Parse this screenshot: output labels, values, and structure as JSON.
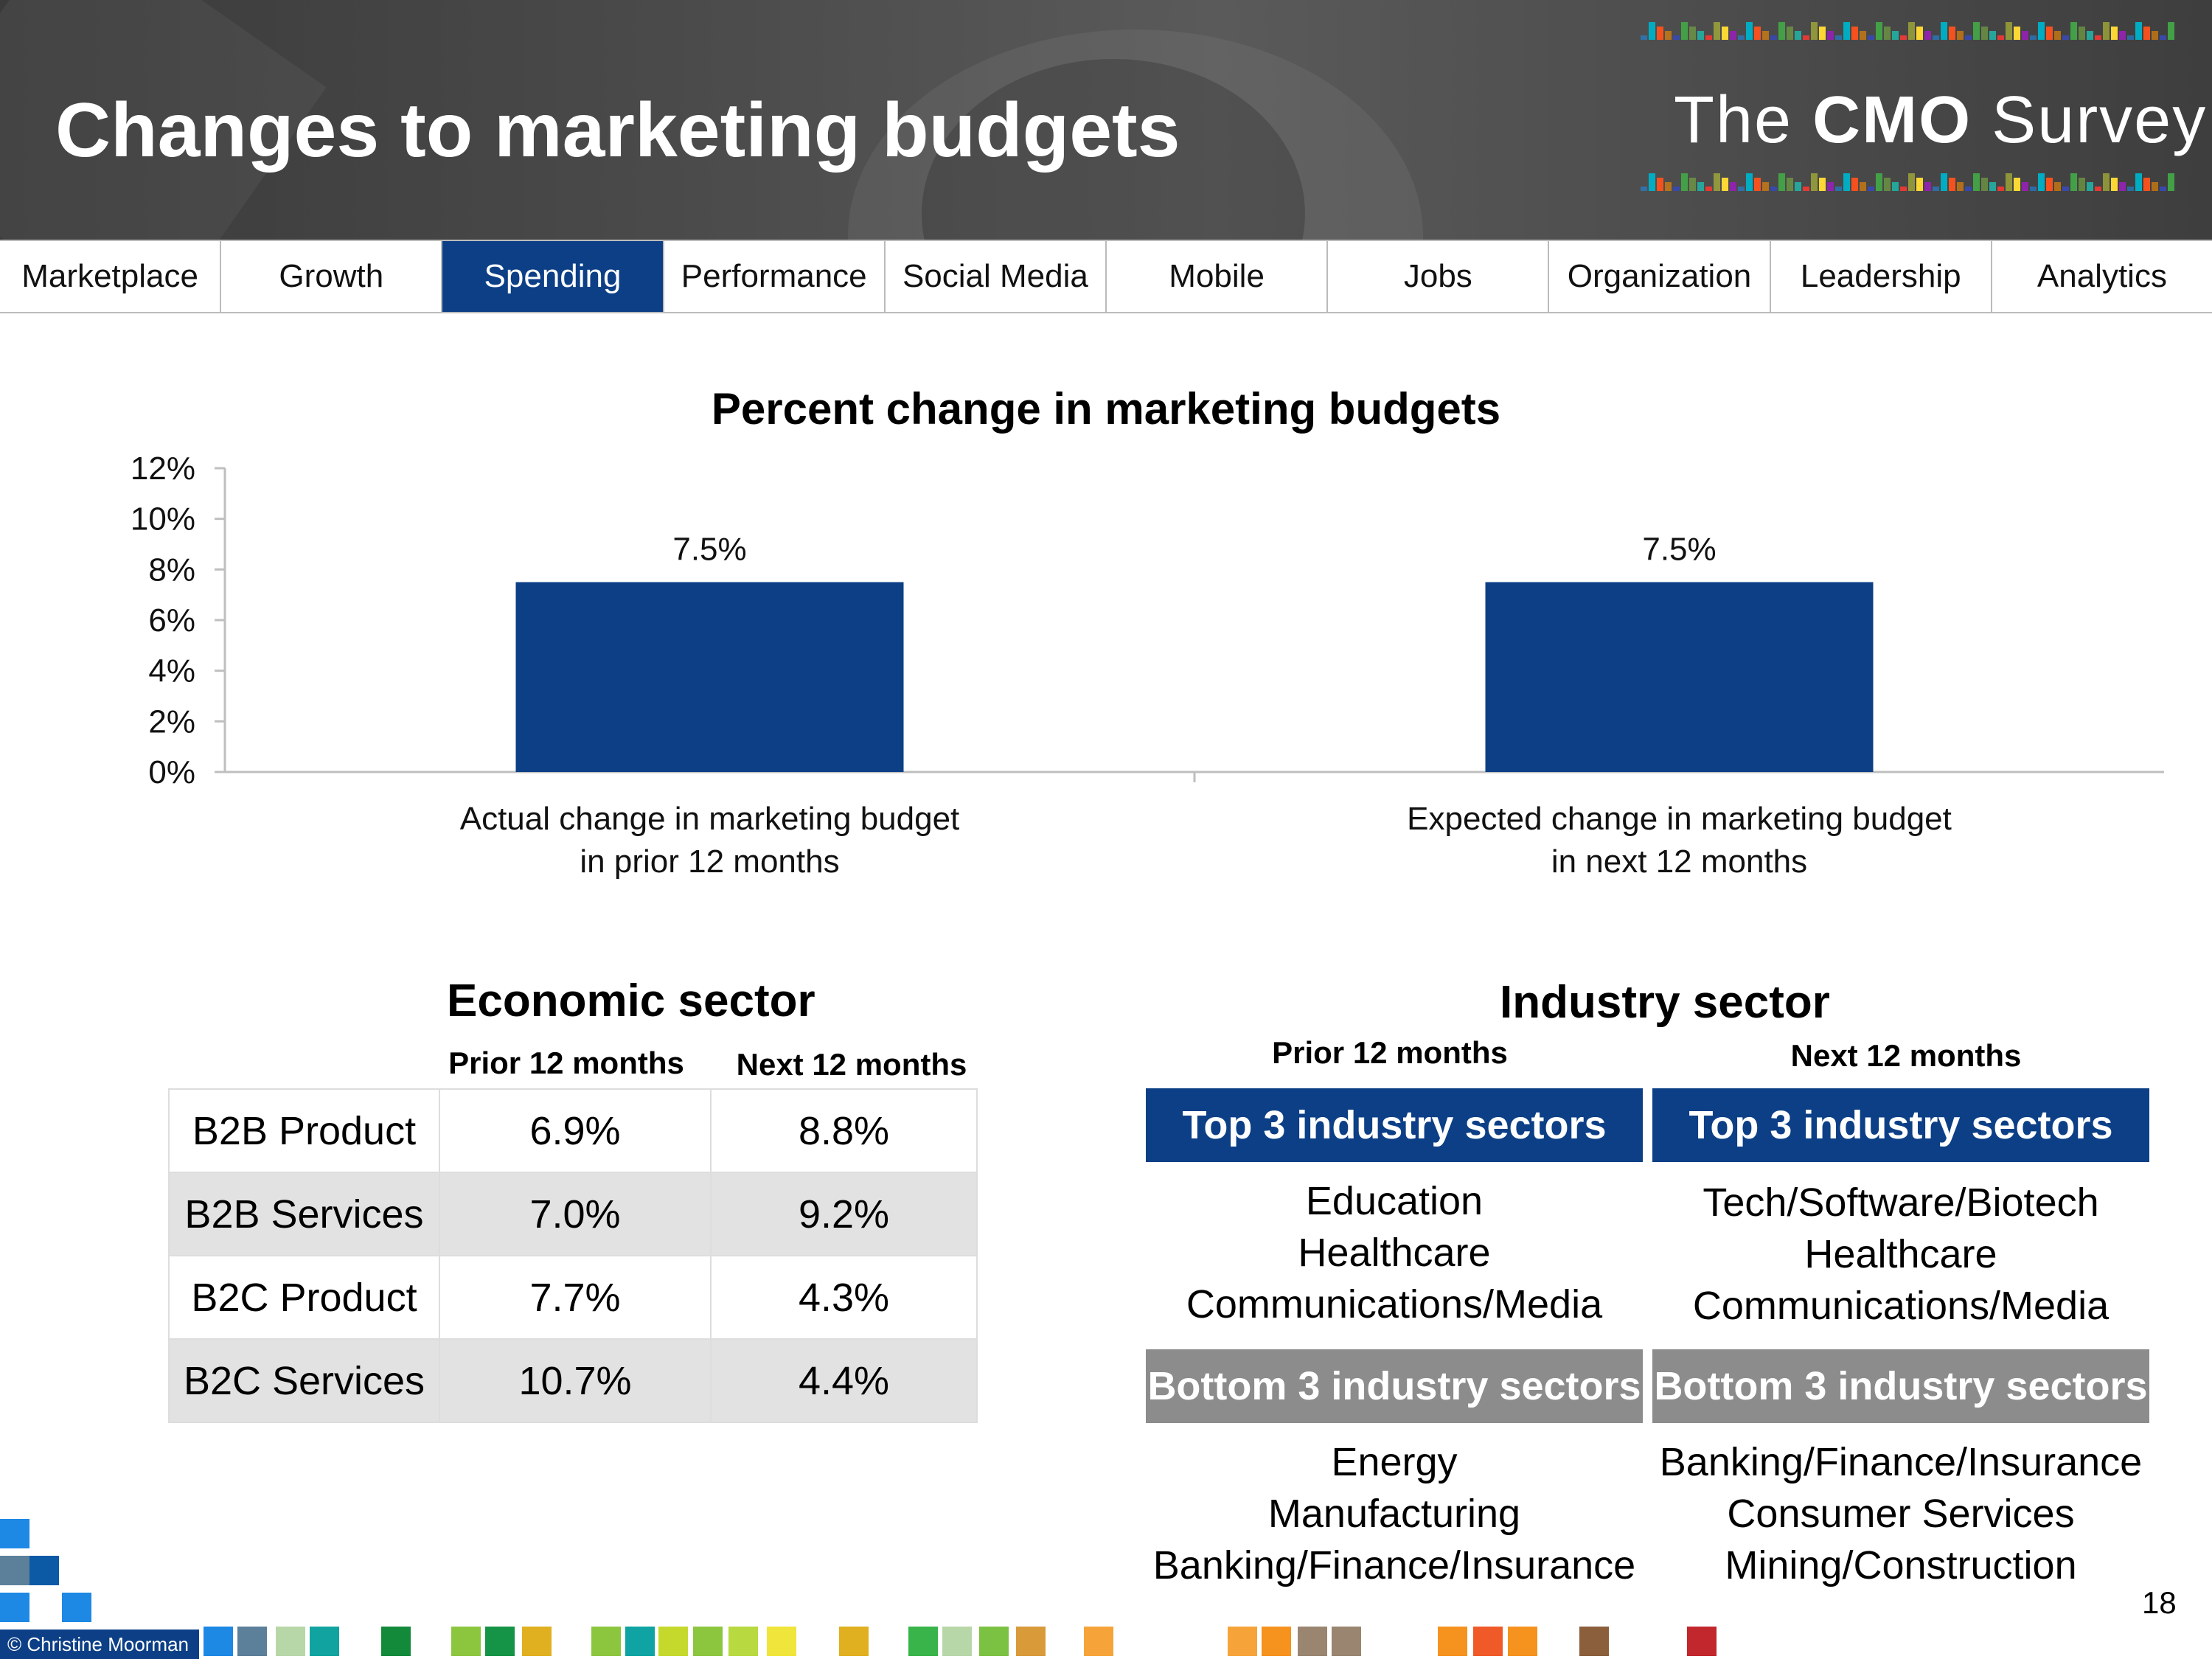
{
  "header": {
    "title": "Changes to marketing budgets"
  },
  "logo": {
    "prefix": "The",
    "brand": "CMO",
    "suffix": "Survey"
  },
  "nav": {
    "active": "Spending",
    "tabs": [
      "Marketplace",
      "Growth",
      "Spending",
      "Performance",
      "Social Media",
      "Mobile",
      "Jobs",
      "Organization",
      "Leadership",
      "Analytics"
    ]
  },
  "chart_data": {
    "type": "bar",
    "title": "Percent change in marketing budgets",
    "categories": [
      [
        "Actual change in marketing budget",
        "in prior 12 months"
      ],
      [
        "Expected change in marketing budget",
        "in next 12 months"
      ]
    ],
    "values": [
      7.5,
      7.5
    ],
    "data_labels": [
      "7.5%",
      "7.5%"
    ],
    "ylim": [
      0,
      12
    ],
    "yticks": [
      "0%",
      "2%",
      "4%",
      "6%",
      "8%",
      "10%",
      "12%"
    ],
    "bar_color": "#0c3f86",
    "xlabel": "",
    "ylabel": ""
  },
  "economic": {
    "title": "Economic sector",
    "col_prior": "Prior 12 months",
    "col_next": "Next 12 months",
    "rows": [
      {
        "label": "B2B Product",
        "prior": "6.9%",
        "next": "8.8%"
      },
      {
        "label": "B2B Services",
        "prior": "7.0%",
        "next": "9.2%"
      },
      {
        "label": "B2C Product",
        "prior": "7.7%",
        "next": "4.3%"
      },
      {
        "label": "B2C Services",
        "prior": "10.7%",
        "next": "4.4%"
      }
    ]
  },
  "industry": {
    "title": "Industry sector",
    "prior_label": "Prior 12 months",
    "next_label": "Next 12 months",
    "top_label": "Top 3 industry sectors",
    "bottom_label": "Bottom 3 industry sectors",
    "prior_top": [
      "Education",
      "Healthcare",
      "Communications/Media"
    ],
    "next_top": [
      "Tech/Software/Biotech",
      "Healthcare",
      "Communications/Media"
    ],
    "prior_bottom": [
      "Energy",
      "Manufacturing",
      "Banking/Finance/Insurance"
    ],
    "next_bottom": [
      "Banking/Finance/Insurance",
      "Consumer Services",
      "Mining/Construction"
    ]
  },
  "footer": {
    "page": "18",
    "credit": "© Christine Moorman"
  },
  "colors": {
    "accent": "#0c3f86",
    "grey_box": "#8c8c8c",
    "row_alt": "#e2e2e2"
  }
}
